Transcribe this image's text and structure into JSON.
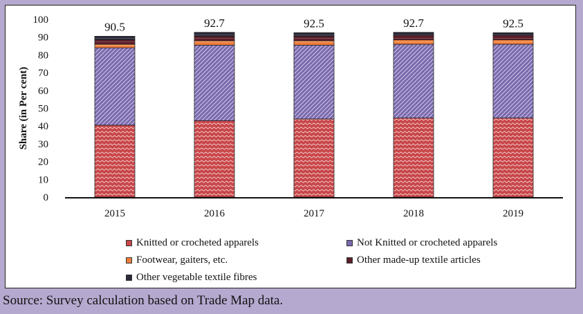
{
  "chart_data": {
    "type": "bar",
    "stacked": true,
    "categories": [
      "2015",
      "2016",
      "2017",
      "2018",
      "2019"
    ],
    "totals": [
      90.5,
      92.7,
      92.5,
      92.7,
      92.5
    ],
    "total_labels": [
      "90.5",
      "92.7",
      "92.5",
      "92.7",
      "92.5"
    ],
    "series": [
      {
        "name": "Knitted or crocheted apparels",
        "color": "#c9464a",
        "values": [
          40.5,
          43.0,
          44.0,
          44.5,
          44.5
        ]
      },
      {
        "name": "Not Knitted or crocheted apparels",
        "color": "#7a6aae",
        "values": [
          43.5,
          42.5,
          41.5,
          41.5,
          41.5
        ]
      },
      {
        "name": "Footwear, gaiters, etc.",
        "color": "#ef7d3b",
        "values": [
          2.0,
          2.5,
          2.5,
          2.5,
          2.5
        ]
      },
      {
        "name": "Other made-up textile articles",
        "color": "#5a1f2a",
        "values": [
          2.5,
          2.5,
          2.5,
          2.5,
          2.5
        ]
      },
      {
        "name": "Other vegetable textile fibres",
        "color": "#2a2a38",
        "values": [
          2.0,
          2.2,
          2.0,
          1.7,
          1.5
        ]
      }
    ],
    "title": "",
    "xlabel": "",
    "ylabel": "Share (in Per cent)",
    "ylim": [
      0,
      100
    ],
    "yticks": [
      "0",
      "10",
      "20",
      "30",
      "40",
      "50",
      "60",
      "70",
      "80",
      "90",
      "100"
    ]
  },
  "source_note": "Source: Survey calculation based on Trade Map data."
}
